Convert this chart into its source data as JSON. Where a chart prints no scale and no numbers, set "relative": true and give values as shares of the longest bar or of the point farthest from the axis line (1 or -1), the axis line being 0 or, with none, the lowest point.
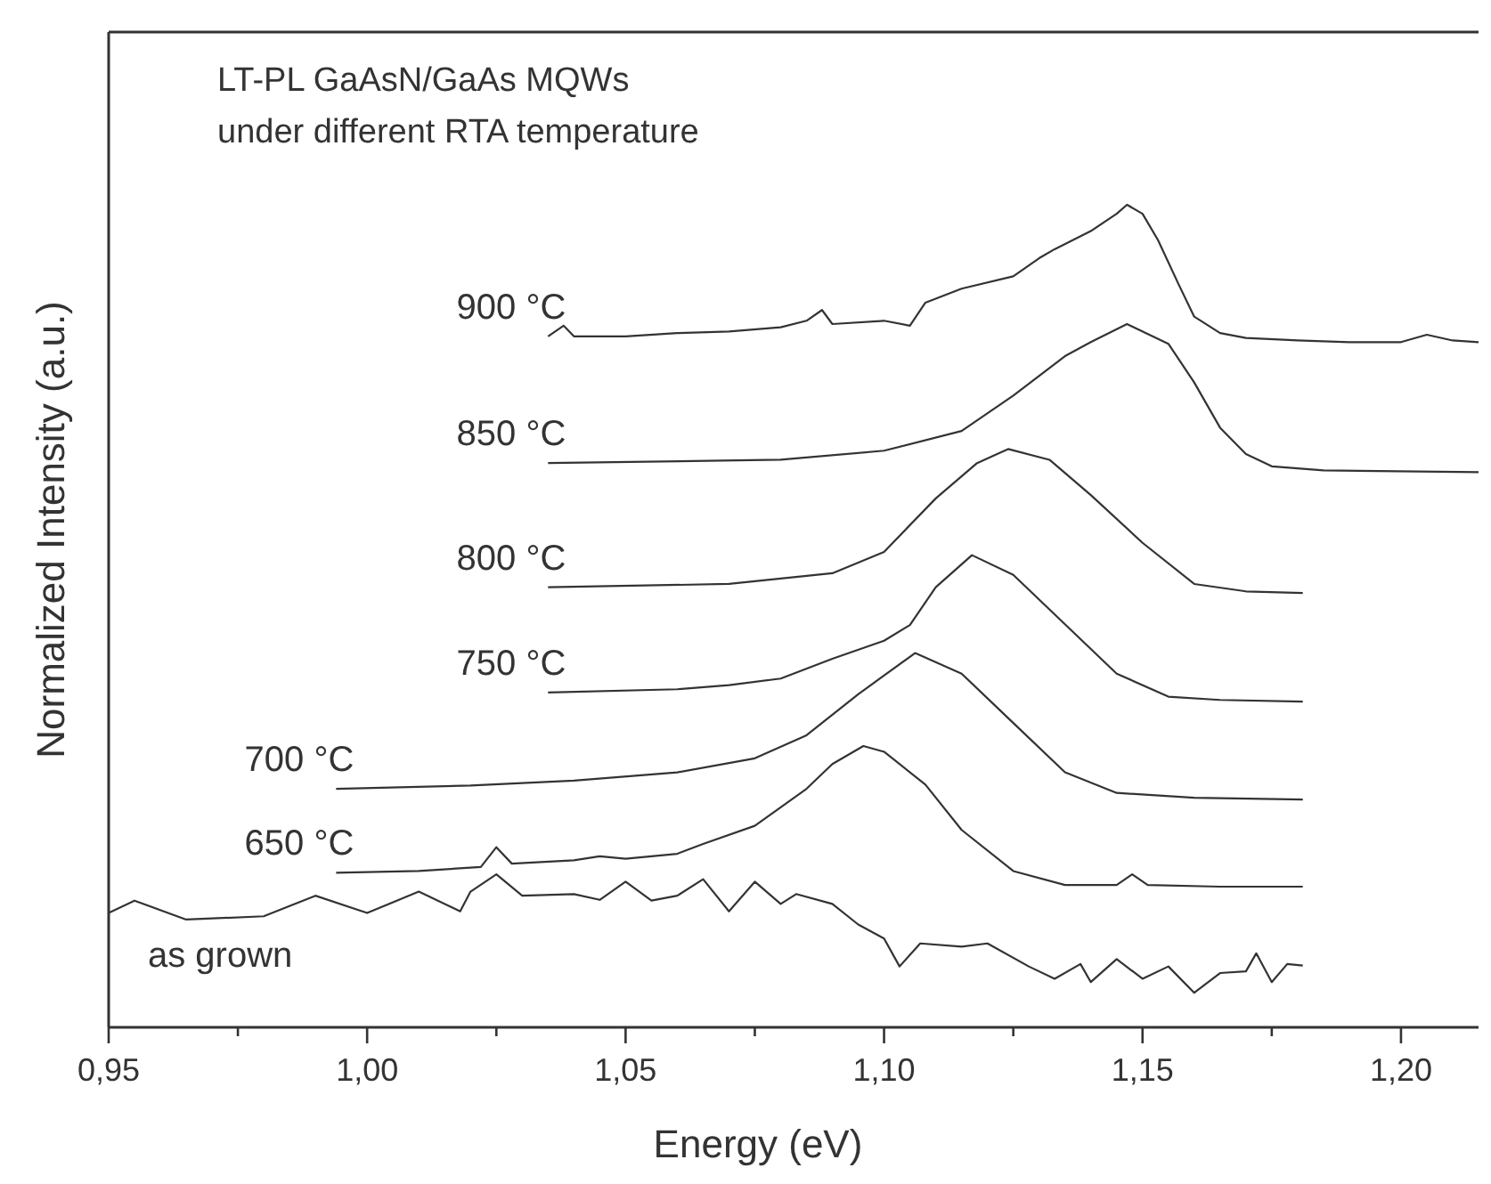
{
  "chart_data": {
    "type": "line",
    "title": "LT-PL GaAsN/GaAs MQWs",
    "subtitle": "under different RTA temperature",
    "xlabel": "Energy (eV)",
    "ylabel": "Normalized Intensity (a.u.)",
    "relative": true,
    "xlim": [
      0.95,
      1.215
    ],
    "xticks": [
      {
        "value": 0.95,
        "label": "0,95"
      },
      {
        "value": 0.975,
        "label": null
      },
      {
        "value": 1.0,
        "label": "1,00"
      },
      {
        "value": 1.025,
        "label": null
      },
      {
        "value": 1.05,
        "label": "1,05"
      },
      {
        "value": 1.075,
        "label": null
      },
      {
        "value": 1.1,
        "label": "1,10"
      },
      {
        "value": 1.125,
        "label": null
      },
      {
        "value": 1.15,
        "label": "1,15"
      },
      {
        "value": 1.175,
        "label": null
      },
      {
        "value": 1.2,
        "label": "1,20"
      }
    ],
    "grid": false,
    "marker": "none",
    "line_style": "solid",
    "series": [
      {
        "name": "900 °C",
        "color": "#333333",
        "x": [
          1.035,
          1.038,
          1.04,
          1.05,
          1.06,
          1.07,
          1.08,
          1.085,
          1.088,
          1.09,
          1.1,
          1.105,
          1.108,
          1.115,
          1.125,
          1.13,
          1.133,
          1.14,
          1.145,
          1.147,
          1.15,
          1.153,
          1.157,
          1.16,
          1.165,
          1.17,
          1.18,
          1.19,
          1.2,
          1.205,
          1.21,
          1.215
        ],
        "values": [
          0.84,
          0.853,
          0.84,
          0.84,
          0.844,
          0.846,
          0.851,
          0.859,
          0.872,
          0.855,
          0.859,
          0.853,
          0.881,
          0.898,
          0.913,
          0.935,
          0.946,
          0.968,
          0.989,
          1.0,
          0.989,
          0.957,
          0.903,
          0.864,
          0.844,
          0.838,
          0.835,
          0.833,
          0.833,
          0.842,
          0.835,
          0.833
        ]
      },
      {
        "name": "850 °C",
        "color": "#333333",
        "x": [
          1.035,
          1.08,
          1.1,
          1.115,
          1.125,
          1.135,
          1.14,
          1.147,
          1.155,
          1.16,
          1.165,
          1.17,
          1.175,
          1.185,
          1.215
        ],
        "values": [
          0.686,
          0.69,
          0.701,
          0.725,
          0.768,
          0.816,
          0.833,
          0.855,
          0.831,
          0.784,
          0.729,
          0.697,
          0.682,
          0.677,
          0.675
        ]
      },
      {
        "name": "800 °C",
        "color": "#333333",
        "x": [
          1.035,
          1.07,
          1.09,
          1.1,
          1.11,
          1.118,
          1.124,
          1.132,
          1.14,
          1.15,
          1.16,
          1.17,
          1.181
        ],
        "values": [
          0.535,
          0.539,
          0.552,
          0.578,
          0.643,
          0.686,
          0.703,
          0.69,
          0.647,
          0.589,
          0.539,
          0.53,
          0.528
        ]
      },
      {
        "name": "750 °C",
        "color": "#333333",
        "x": [
          1.035,
          1.06,
          1.07,
          1.08,
          1.09,
          1.1,
          1.105,
          1.11,
          1.117,
          1.125,
          1.135,
          1.145,
          1.155,
          1.165,
          1.181
        ],
        "values": [
          0.407,
          0.411,
          0.416,
          0.424,
          0.448,
          0.47,
          0.489,
          0.535,
          0.574,
          0.55,
          0.49,
          0.43,
          0.402,
          0.398,
          0.396
        ]
      },
      {
        "name": "700 °C",
        "color": "#333333",
        "x": [
          0.994,
          1.02,
          1.04,
          1.06,
          1.075,
          1.085,
          1.095,
          1.106,
          1.115,
          1.125,
          1.135,
          1.145,
          1.16,
          1.181
        ],
        "values": [
          0.29,
          0.294,
          0.3,
          0.31,
          0.327,
          0.355,
          0.405,
          0.455,
          0.43,
          0.37,
          0.31,
          0.285,
          0.279,
          0.277
        ]
      },
      {
        "name": "650 °C",
        "color": "#333333",
        "x": [
          0.994,
          1.01,
          1.022,
          1.025,
          1.028,
          1.04,
          1.045,
          1.05,
          1.06,
          1.065,
          1.075,
          1.085,
          1.09,
          1.096,
          1.1,
          1.108,
          1.115,
          1.125,
          1.135,
          1.145,
          1.148,
          1.151,
          1.165,
          1.181
        ],
        "values": [
          0.188,
          0.19,
          0.195,
          0.219,
          0.199,
          0.203,
          0.208,
          0.205,
          0.211,
          0.223,
          0.245,
          0.29,
          0.32,
          0.342,
          0.335,
          0.295,
          0.24,
          0.19,
          0.173,
          0.173,
          0.186,
          0.173,
          0.171,
          0.171
        ]
      },
      {
        "name": "as grown",
        "color": "#333333",
        "x": [
          0.95,
          0.955,
          0.965,
          0.98,
          0.99,
          1.0,
          1.01,
          1.018,
          1.02,
          1.025,
          1.03,
          1.04,
          1.045,
          1.05,
          1.055,
          1.06,
          1.065,
          1.07,
          1.075,
          1.08,
          1.083,
          1.09,
          1.095,
          1.1,
          1.103,
          1.107,
          1.115,
          1.12,
          1.128,
          1.133,
          1.138,
          1.14,
          1.145,
          1.15,
          1.155,
          1.16,
          1.165,
          1.17,
          1.172,
          1.175,
          1.178,
          1.181
        ],
        "values": [
          0.139,
          0.154,
          0.131,
          0.135,
          0.16,
          0.139,
          0.165,
          0.141,
          0.165,
          0.186,
          0.16,
          0.162,
          0.155,
          0.177,
          0.154,
          0.16,
          0.18,
          0.141,
          0.177,
          0.15,
          0.162,
          0.15,
          0.125,
          0.108,
          0.074,
          0.102,
          0.098,
          0.102,
          0.074,
          0.059,
          0.077,
          0.055,
          0.083,
          0.059,
          0.074,
          0.042,
          0.066,
          0.068,
          0.09,
          0.055,
          0.077,
          0.075
        ]
      }
    ]
  }
}
